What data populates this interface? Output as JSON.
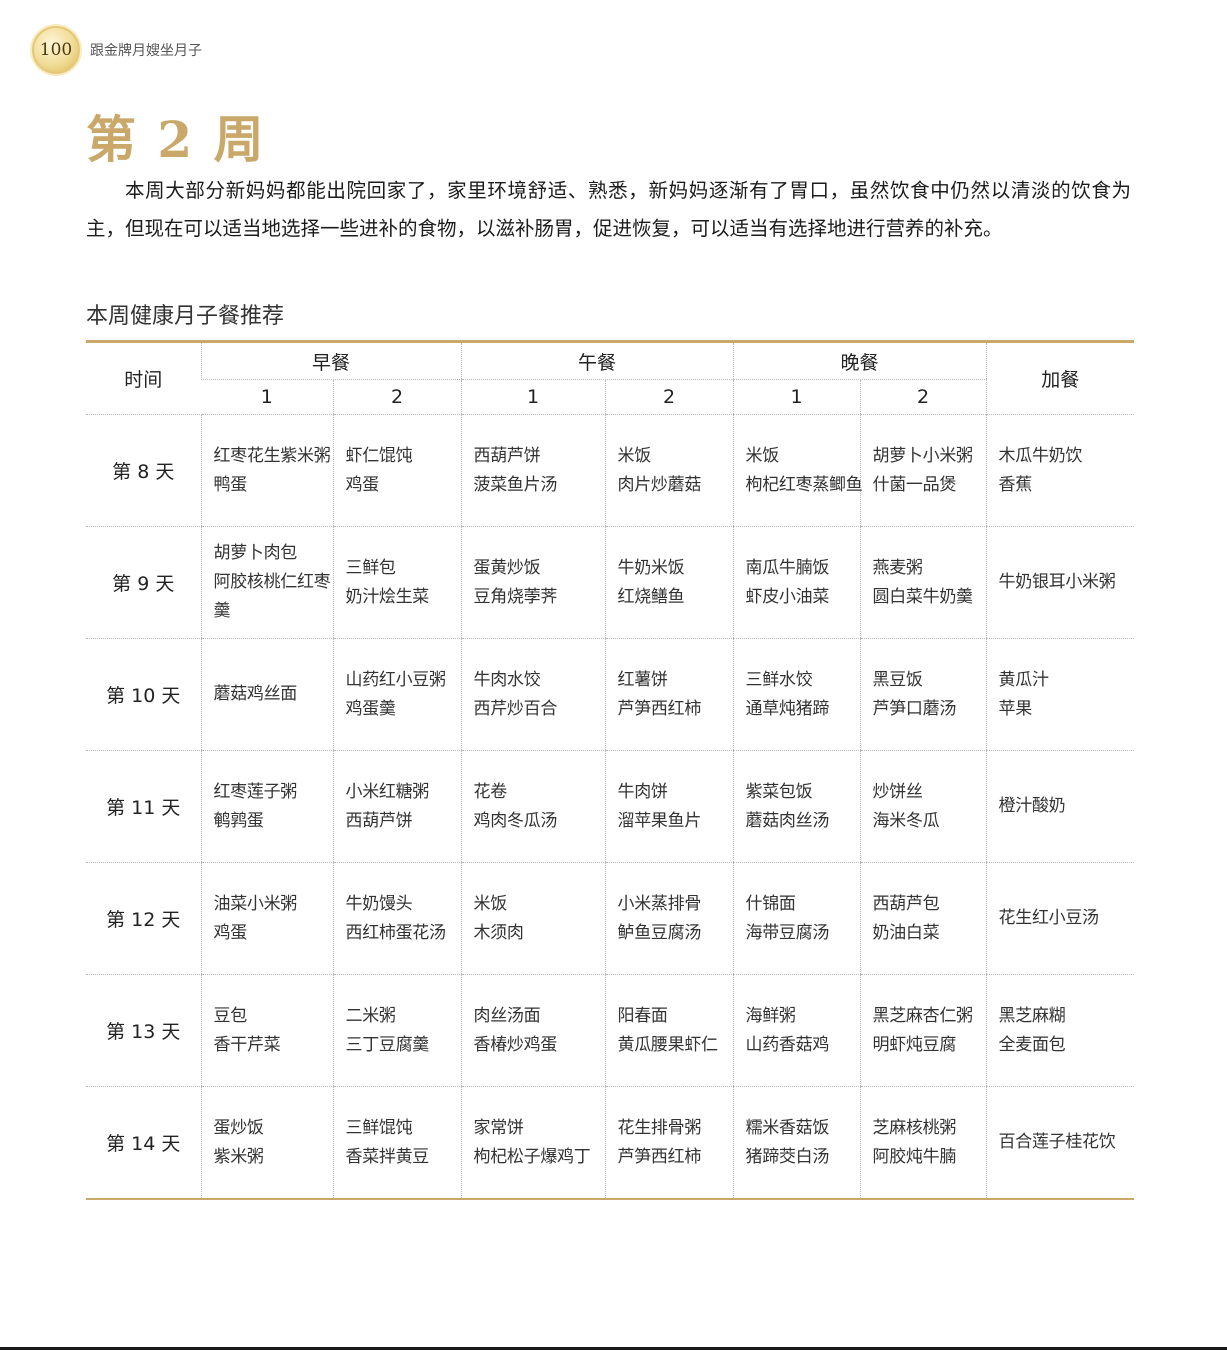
{
  "header": {
    "page_number": "100",
    "book_title": "跟金牌月嫂坐月子"
  },
  "week_title": "第 2 周",
  "intro": "本周大部分新妈妈都能出院回家了，家里环境舒适、熟悉，新妈妈逐渐有了胃口，虽然饮食中仍然以清淡的饮食为主，但现在可以适当地选择一些进补的食物，以滋补肠胃，促进恢复，可以适当有选择地进行营养的补充。",
  "section_title": "本周健康月子餐推荐",
  "table": {
    "time_header": "时间",
    "groups": [
      "早餐",
      "午餐",
      "晚餐"
    ],
    "sub_headers": [
      "1",
      "2"
    ],
    "extra_header": "加餐",
    "rows": [
      {
        "day": "第 8 天",
        "cells": [
          [
            "红枣花生紫米粥",
            "鸭蛋"
          ],
          [
            "虾仁馄饨",
            "鸡蛋"
          ],
          [
            "西葫芦饼",
            "菠菜鱼片汤"
          ],
          [
            "米饭",
            "肉片炒蘑菇"
          ],
          [
            "米饭",
            "枸杞红枣蒸鲫鱼"
          ],
          [
            "胡萝卜小米粥",
            "什菌一品煲"
          ],
          [
            "木瓜牛奶饮",
            "香蕉"
          ]
        ]
      },
      {
        "day": "第 9 天",
        "cells": [
          [
            "胡萝卜肉包",
            "阿胶核桃仁红枣羹"
          ],
          [
            "三鲜包",
            "奶汁烩生菜"
          ],
          [
            "蛋黄炒饭",
            "豆角烧荸荠"
          ],
          [
            "牛奶米饭",
            "红烧鳝鱼"
          ],
          [
            "南瓜牛腩饭",
            "虾皮小油菜"
          ],
          [
            "燕麦粥",
            "圆白菜牛奶羹"
          ],
          [
            "牛奶银耳小米粥"
          ]
        ]
      },
      {
        "day": "第 10 天",
        "cells": [
          [
            "蘑菇鸡丝面"
          ],
          [
            "山药红小豆粥",
            "鸡蛋羹"
          ],
          [
            "牛肉水饺",
            "西芹炒百合"
          ],
          [
            "红薯饼",
            "芦笋西红柿"
          ],
          [
            "三鲜水饺",
            "通草炖猪蹄"
          ],
          [
            "黑豆饭",
            "芦笋口蘑汤"
          ],
          [
            "黄瓜汁",
            "苹果"
          ]
        ]
      },
      {
        "day": "第 11 天",
        "cells": [
          [
            "红枣莲子粥",
            "鹌鹑蛋"
          ],
          [
            "小米红糖粥",
            "西葫芦饼"
          ],
          [
            "花卷",
            "鸡肉冬瓜汤"
          ],
          [
            "牛肉饼",
            "溜苹果鱼片"
          ],
          [
            "紫菜包饭",
            "蘑菇肉丝汤"
          ],
          [
            "炒饼丝",
            "海米冬瓜"
          ],
          [
            "橙汁酸奶"
          ]
        ]
      },
      {
        "day": "第 12 天",
        "cells": [
          [
            "油菜小米粥",
            "鸡蛋"
          ],
          [
            "牛奶馒头",
            "西红柿蛋花汤"
          ],
          [
            "米饭",
            "木须肉"
          ],
          [
            "小米蒸排骨",
            "鲈鱼豆腐汤"
          ],
          [
            "什锦面",
            "海带豆腐汤"
          ],
          [
            "西葫芦包",
            "奶油白菜"
          ],
          [
            "花生红小豆汤"
          ]
        ]
      },
      {
        "day": "第 13 天",
        "cells": [
          [
            "豆包",
            "香干芹菜"
          ],
          [
            "二米粥",
            "三丁豆腐羹"
          ],
          [
            "肉丝汤面",
            "香椿炒鸡蛋"
          ],
          [
            "阳春面",
            "黄瓜腰果虾仁"
          ],
          [
            "海鲜粥",
            "山药香菇鸡"
          ],
          [
            "黑芝麻杏仁粥",
            "明虾炖豆腐"
          ],
          [
            "黑芝麻糊",
            "全麦面包"
          ]
        ]
      },
      {
        "day": "第 14 天",
        "cells": [
          [
            "蛋炒饭",
            "紫米粥"
          ],
          [
            "三鲜馄饨",
            "香菜拌黄豆"
          ],
          [
            "家常饼",
            "枸杞松子爆鸡丁"
          ],
          [
            "花生排骨粥",
            "芦笋西红柿"
          ],
          [
            "糯米香菇饭",
            "猪蹄茭白汤"
          ],
          [
            "芝麻核桃粥",
            "阿胶炖牛腩"
          ],
          [
            "百合莲子桂花饮"
          ]
        ]
      }
    ]
  },
  "colors": {
    "accent_gold": "#c9a86a",
    "badge_gold": "#e6c977",
    "rule_dark": "#1a1a1a"
  },
  "icons": {
    "page_badge": "gold-circle-badge"
  }
}
